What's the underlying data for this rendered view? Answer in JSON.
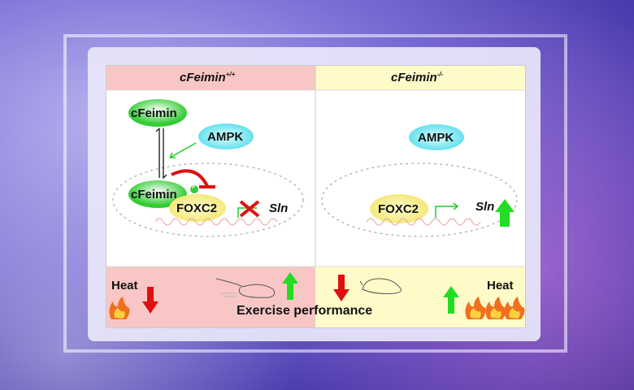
{
  "left": {
    "title": "cFeimin",
    "superscript": "+/+",
    "cfeimin_top": "cFeimin",
    "ampk": "AMPK",
    "cfeimin_nucleus": "cFeimin",
    "phospho": "P",
    "foxc2": "FOXC2",
    "gene": "Sln",
    "heat": "Heat"
  },
  "right": {
    "title": "cFeimin",
    "superscript": "-/-",
    "ampk": "AMPK",
    "foxc2": "FOXC2",
    "gene": "Sln",
    "heat": "Heat"
  },
  "footer": {
    "label": "Exercise performance"
  },
  "colors": {
    "left_bg": "#f9c6c6",
    "right_bg": "#fefbc8",
    "up": "#22dd22",
    "down": "#e01010",
    "inhibit": "#e01010"
  }
}
